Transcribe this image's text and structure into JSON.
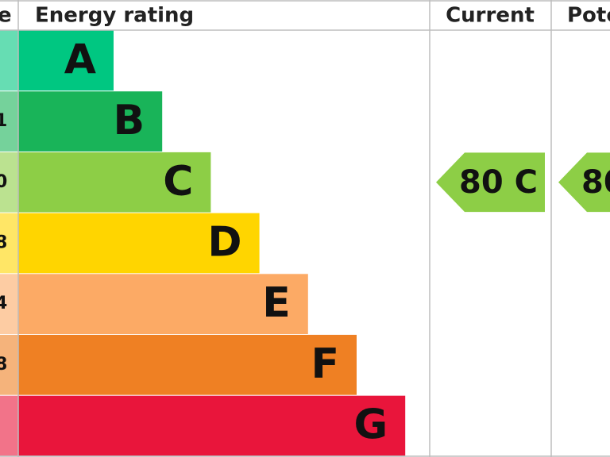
{
  "header": {
    "score": "e",
    "rating": "Energy rating",
    "current": "Current",
    "potential": "Pote"
  },
  "bands": [
    {
      "letter": "A",
      "color": "#00c781"
    },
    {
      "letter": "B",
      "score": "1",
      "color": "#19b459"
    },
    {
      "letter": "C",
      "score": "0",
      "color": "#8dce46"
    },
    {
      "letter": "D",
      "score": "8",
      "color": "#ffd500"
    },
    {
      "letter": "E",
      "score": "4",
      "color": "#fcaa65"
    },
    {
      "letter": "F",
      "score": "8",
      "color": "#ef8023"
    },
    {
      "letter": "G",
      "color": "#e9153b"
    }
  ],
  "current": {
    "label": "80 C",
    "band": 2
  },
  "potential": {
    "label": "80",
    "band": 2
  }
}
